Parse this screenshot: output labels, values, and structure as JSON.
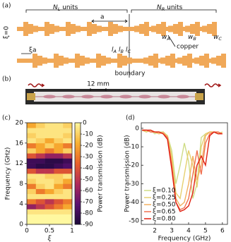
{
  "panel_a": {
    "label": "(a)",
    "xi_zero": "ξ=0",
    "n_left": {
      "base": "N",
      "sub": "L",
      "tail": " units"
    },
    "n_right": {
      "base": "N",
      "sub": "R",
      "tail": " units"
    },
    "period": "a",
    "w_a": {
      "base": "w",
      "sub": "A"
    },
    "w_b": {
      "base": "w",
      "sub": "B"
    },
    "w_c": {
      "base": "w",
      "sub": "C"
    },
    "copper": "copper",
    "xi_a": "ξa",
    "l_a": {
      "base": "l",
      "sub": "A"
    },
    "l_b": {
      "base": "l",
      "sub": "B"
    },
    "l_c": {
      "base": "l",
      "sub": "C"
    },
    "boundary": "boundary"
  },
  "panel_b": {
    "label": "(b)",
    "scale": "12 mm"
  },
  "chart_data": [
    {
      "type": "heatmap",
      "panel": "(c)",
      "xlabel": "ξ",
      "ylabel": "Frequency (GHz)",
      "x_bins": [
        0,
        0.2,
        0.4,
        0.6,
        0.8,
        1
      ],
      "y_bins": [
        0,
        1,
        2,
        3,
        4,
        5,
        6,
        7,
        8,
        9,
        10,
        11,
        12,
        13,
        14,
        15,
        16,
        17,
        18,
        19,
        20
      ],
      "values": [
        [
          0,
          0,
          0,
          0,
          0
        ],
        [
          0,
          0,
          0,
          0,
          0
        ],
        [
          -5,
          -5,
          -5,
          -5,
          -5
        ],
        [
          -60,
          -50,
          -40,
          -30,
          -20
        ],
        [
          -30,
          -40,
          -50,
          -40,
          -30
        ],
        [
          -5,
          -5,
          -5,
          -5,
          -5
        ],
        [
          -10,
          -30,
          -20,
          -10,
          -5
        ],
        [
          -30,
          -10,
          -5,
          -20,
          -30
        ],
        [
          -10,
          -5,
          -5,
          -10,
          -20
        ],
        [
          -5,
          -5,
          -10,
          -10,
          -5
        ],
        [
          -40,
          -50,
          -50,
          -40,
          -40
        ],
        [
          -80,
          -85,
          -85,
          -80,
          -75
        ],
        [
          -80,
          -80,
          -85,
          -85,
          -80
        ],
        [
          -40,
          -50,
          -60,
          -60,
          -50
        ],
        [
          -10,
          -20,
          -30,
          -20,
          -10
        ],
        [
          -30,
          -20,
          -10,
          -20,
          -30
        ],
        [
          -5,
          -10,
          -20,
          -10,
          -5
        ],
        [
          -10,
          -5,
          -5,
          -5,
          -10
        ],
        [
          -5,
          -5,
          -5,
          -5,
          -5
        ],
        [
          -20,
          -10,
          -5,
          -5,
          -10
        ]
      ],
      "xlim": [
        0,
        1
      ],
      "xticks": [
        0,
        0.5,
        1
      ],
      "ylim": [
        0,
        20
      ],
      "yticks": [
        0,
        4,
        8,
        12,
        16,
        20
      ],
      "colorbar": {
        "label": "Power transmission (dB)",
        "lim": [
          -90,
          0
        ],
        "ticks": [
          0,
          -10,
          -20,
          -30,
          -40,
          -50,
          -60,
          -70,
          -80,
          -90
        ],
        "colormap": [
          "#1a0838",
          "#5a1070",
          "#b02a5a",
          "#e8602a",
          "#f8b030",
          "#fff8a0"
        ]
      }
    },
    {
      "type": "line",
      "panel": "(d)",
      "xlabel": "Frequency (GHz)",
      "ylabel": "Power transmission (dB)",
      "x": [
        1.25,
        1.5,
        1.75,
        2,
        2.25,
        2.5,
        2.75,
        3,
        3.25,
        3.5,
        3.75,
        4,
        4.25,
        4.5,
        4.75,
        5,
        5.25,
        5.5,
        5.75,
        6
      ],
      "series": [
        {
          "name": "ξ=0.10",
          "color": "#cfdc86",
          "values": [
            -1,
            -2,
            -1,
            -3,
            -2,
            -2,
            -4,
            -12,
            -30,
            -20,
            -8,
            -18,
            -38,
            -30,
            -5,
            -3,
            -2,
            -2,
            -3,
            -2
          ]
        },
        {
          "name": "ξ=0.25",
          "color": "#e6d070",
          "values": [
            -1,
            -2,
            -1,
            -2,
            -2,
            -3,
            -4,
            -15,
            -35,
            -38,
            -25,
            -12,
            -20,
            -32,
            -10,
            -3,
            -2,
            -2,
            -3,
            -2
          ]
        },
        {
          "name": "ξ=0.50",
          "color": "#f2b060",
          "values": [
            -1,
            -1,
            -2,
            -2,
            -3,
            -2,
            -5,
            -18,
            -38,
            -42,
            -40,
            -30,
            -15,
            -28,
            -20,
            -4,
            -2,
            -2,
            -2,
            -3
          ]
        },
        {
          "name": "ξ=0.65",
          "color": "#f07050",
          "values": [
            -1,
            -1,
            -2,
            -2,
            -2,
            -3,
            -5,
            -20,
            -40,
            -44,
            -43,
            -38,
            -25,
            -12,
            -25,
            -8,
            -3,
            -2,
            -2,
            -3
          ]
        },
        {
          "name": "ξ=0.80",
          "color": "#e02010",
          "values": [
            -1,
            -1,
            -1,
            -2,
            -2,
            -3,
            -6,
            -22,
            -40,
            -45,
            -44,
            -42,
            -35,
            -20,
            -15,
            -20,
            -4,
            -2,
            -3,
            -3
          ]
        }
      ],
      "xlim": [
        1.2,
        6.3
      ],
      "ylim": [
        -52,
        3
      ],
      "xticks": [
        2,
        3,
        4,
        5,
        6
      ],
      "yticks": [
        0,
        -10,
        -20,
        -30,
        -40,
        -50
      ],
      "legend": "lower left"
    }
  ]
}
